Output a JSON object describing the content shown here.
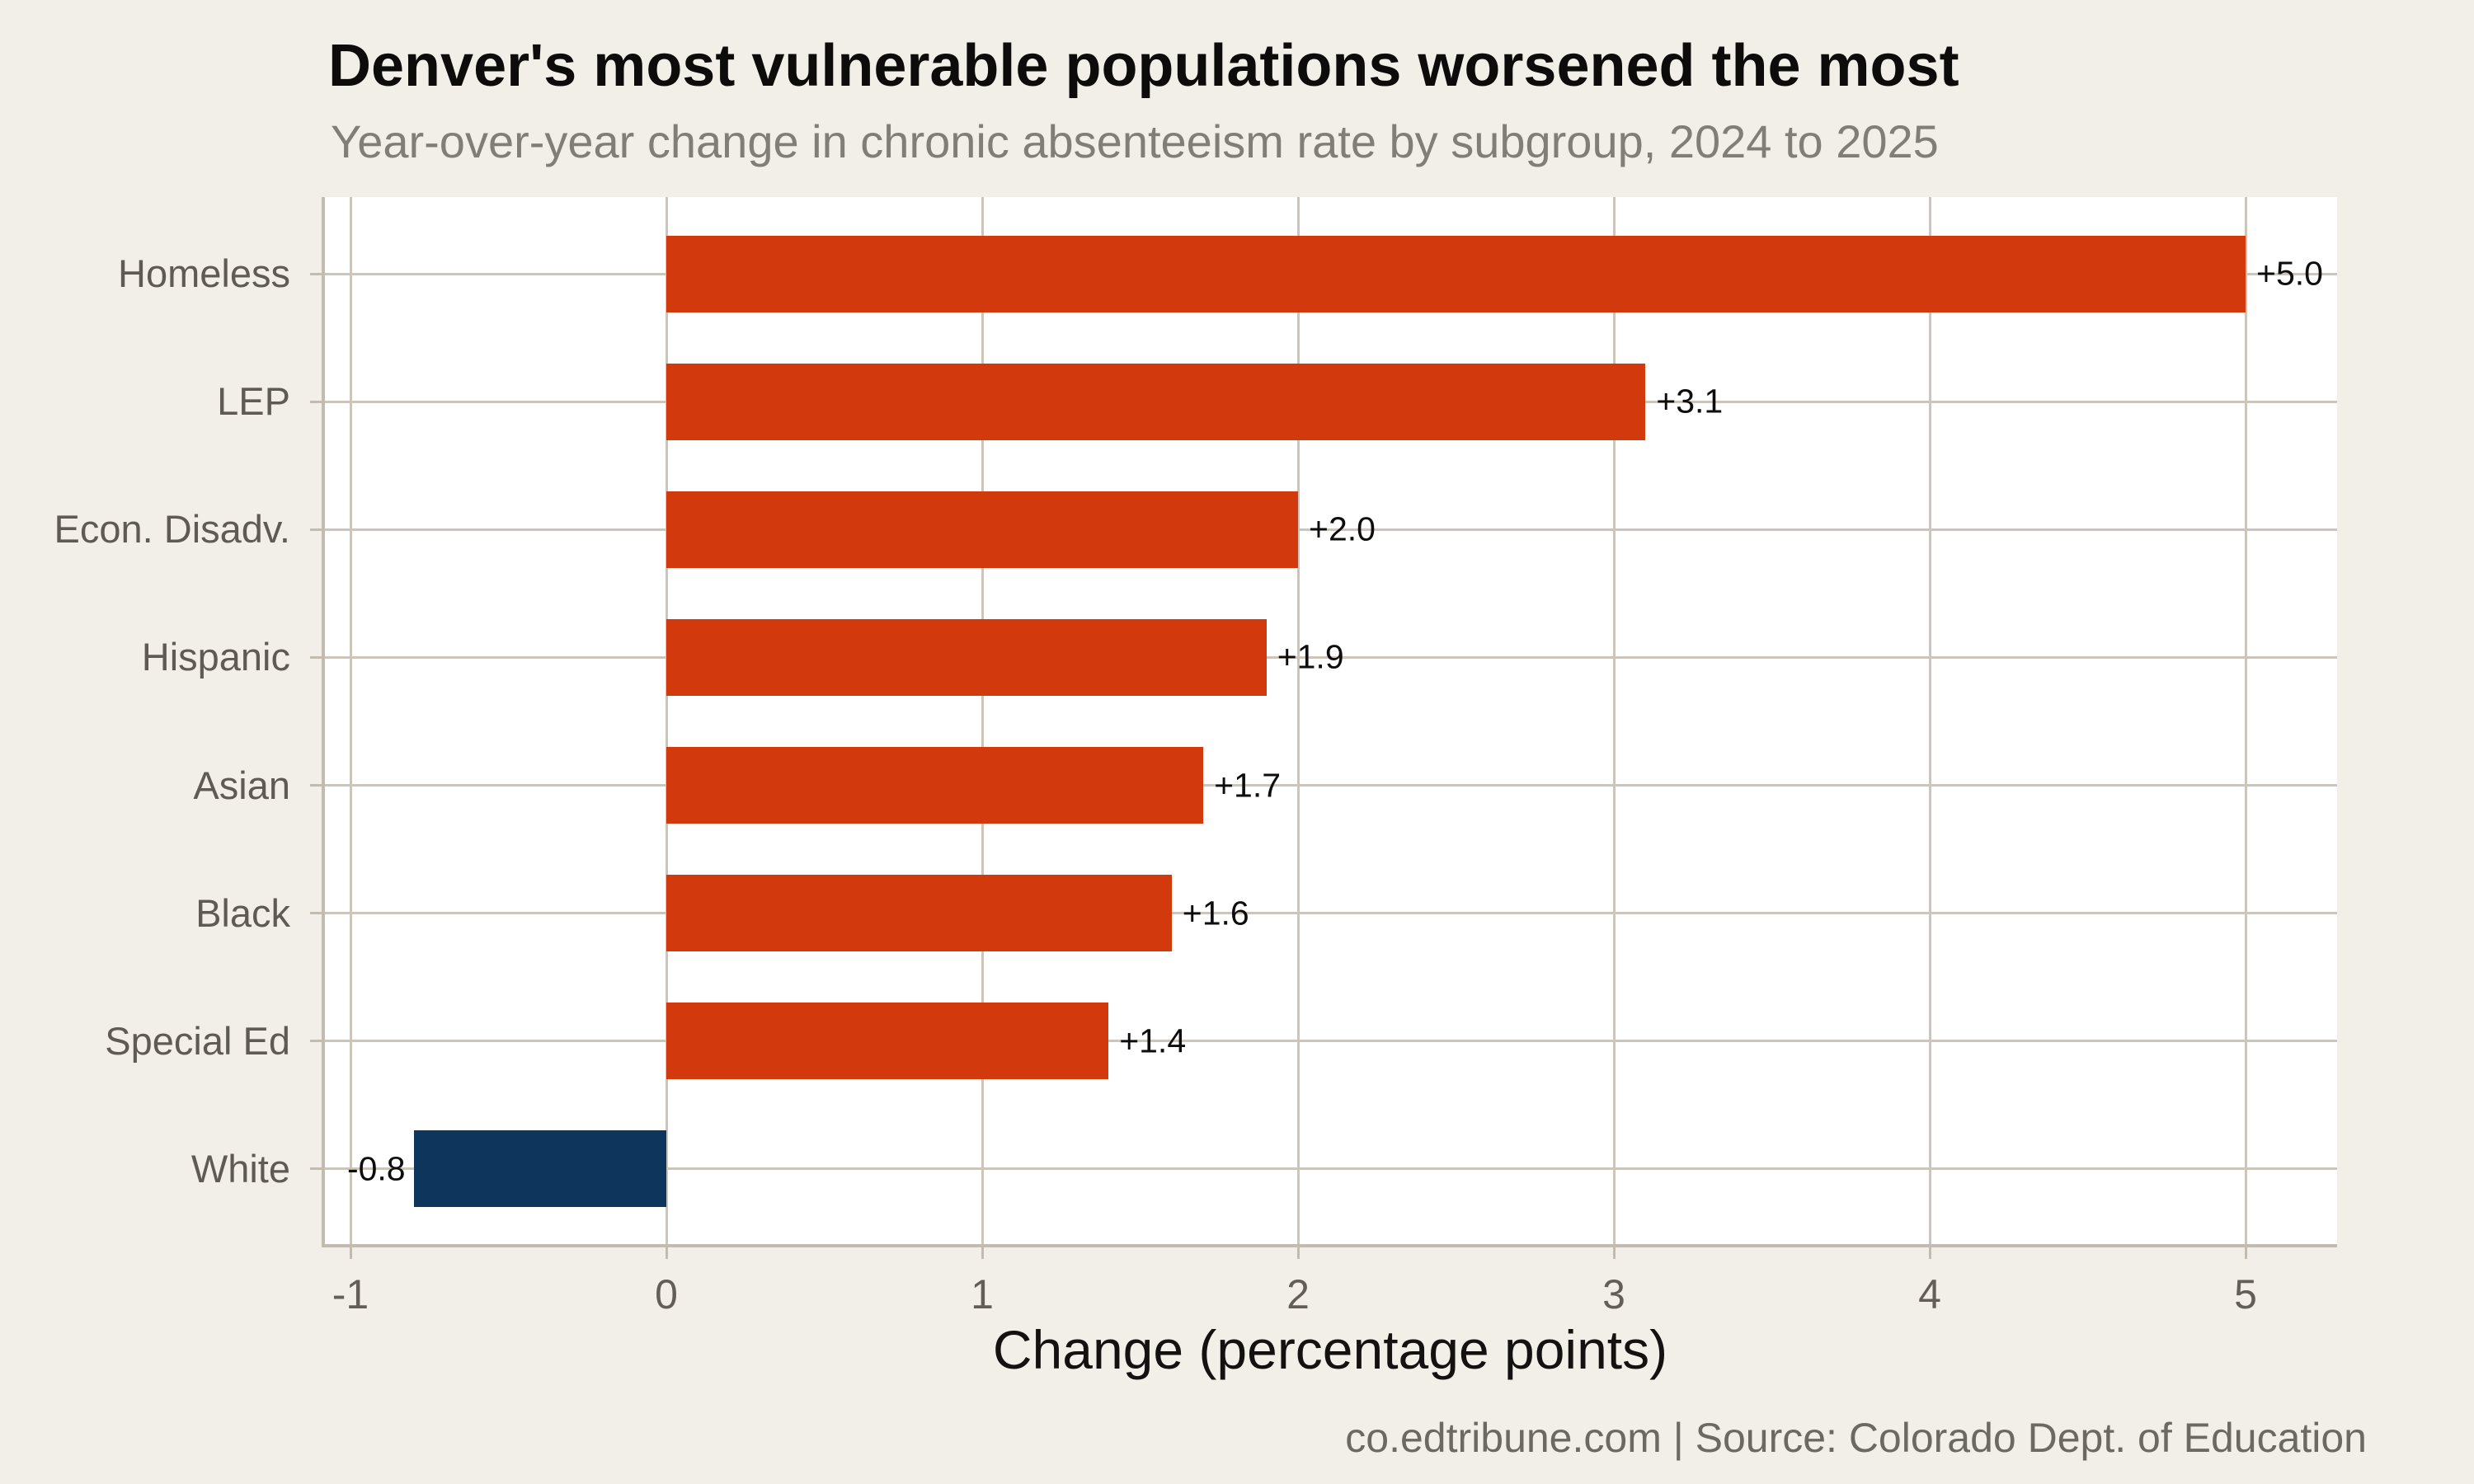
{
  "chart_data": {
    "type": "bar",
    "orientation": "horizontal",
    "title": "Denver's most vulnerable populations worsened the most",
    "subtitle": "Year-over-year change in chronic absenteeism rate by subgroup, 2024 to 2025",
    "xlabel": "Change (percentage points)",
    "footer": "co.edtribune.com | Source: Colorado Dept. of Education",
    "categories": [
      "Homeless",
      "LEP",
      "Econ. Disadv.",
      "Hispanic",
      "Asian",
      "Black",
      "Special Ed",
      "White"
    ],
    "values": [
      5.0,
      3.1,
      2.0,
      1.9,
      1.7,
      1.6,
      1.4,
      -0.8
    ],
    "value_labels": [
      "+5.0",
      "+3.1",
      "+2.0",
      "+1.9",
      "+1.7",
      "+1.6",
      "+1.4",
      "-0.8"
    ],
    "x_ticks": [
      -1,
      0,
      1,
      2,
      3,
      4,
      5
    ],
    "xlim": [
      -1.09,
      5.29
    ],
    "grid": true,
    "legend": false,
    "bar_width_fraction": 0.6,
    "colors": {
      "positive_bar": "#d23a0d",
      "negative_bar": "#0e365c",
      "background": "#f2efe9",
      "plot_background": "#ffffff",
      "gridline": "#ccc6ba",
      "axis_line": "#c2bcb0",
      "title_text": "#0e0c0a",
      "subtitle_text": "#817d77",
      "tick_label_text": "#635e57",
      "category_label_text": "#5f5a55",
      "value_label_text": "#0d0d0d",
      "footer_text": "#6c6862"
    }
  }
}
